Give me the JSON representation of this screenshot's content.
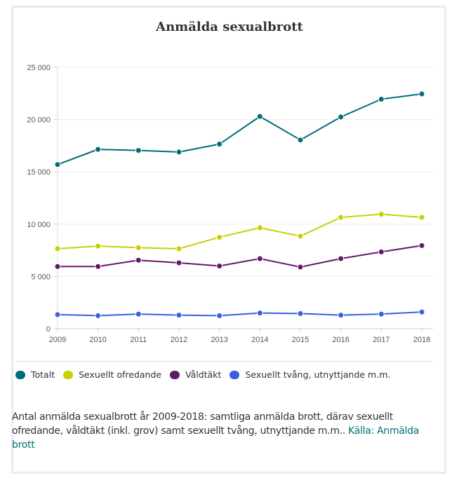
{
  "chart_data": {
    "type": "line",
    "title": "Anmälda sexualbrott",
    "xlabel": "",
    "ylabel": "",
    "x": [
      2009,
      2010,
      2011,
      2012,
      2013,
      2014,
      2015,
      2016,
      2017,
      2018
    ],
    "x_tick_labels": [
      "2009",
      "2010",
      "2011",
      "2012",
      "2013",
      "2014",
      "2015",
      "2016",
      "2017",
      "2018"
    ],
    "ylim": [
      0,
      25000
    ],
    "y_ticks": [
      0,
      5000,
      10000,
      15000,
      20000,
      25000
    ],
    "y_tick_labels": [
      "0",
      "5 000",
      "10 000",
      "15 000",
      "20 000",
      "25 000"
    ],
    "grid": true,
    "legend_position": "bottom-left",
    "series": [
      {
        "name": "Totalt",
        "color": "#006e78",
        "values": [
          15700,
          17150,
          17050,
          16900,
          17650,
          20300,
          18050,
          20250,
          21950,
          22450
        ]
      },
      {
        "name": "Sexuellt ofredande",
        "color": "#c6d000",
        "values": [
          7650,
          7900,
          7750,
          7650,
          8750,
          9650,
          8850,
          10650,
          10950,
          10650
        ]
      },
      {
        "name": "Våldtäkt",
        "color": "#62196a",
        "values": [
          5950,
          5950,
          6550,
          6300,
          6000,
          6700,
          5900,
          6700,
          7350,
          7950
        ]
      },
      {
        "name": "Sexuellt tvång, utnyttjande m.m.",
        "color": "#3a5fe0",
        "values": [
          1350,
          1250,
          1400,
          1300,
          1250,
          1500,
          1450,
          1300,
          1400,
          1600
        ]
      }
    ]
  },
  "caption": {
    "text": "Antal anmälda sexualbrott år 2009-2018: samtliga anmälda brott, därav sexuellt ofredande, våldtäkt (inkl. grov) samt sexuellt tvång, utnyttjande m.m.. ",
    "source_link": "Källa: Anmälda brott"
  }
}
